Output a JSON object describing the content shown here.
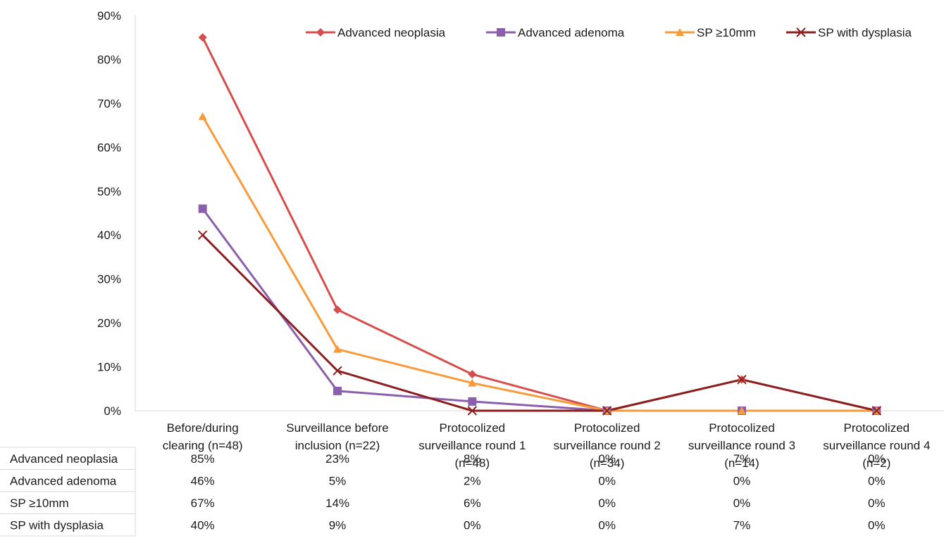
{
  "chart_data": {
    "type": "line",
    "title": "",
    "xlabel": "",
    "ylabel": "",
    "ylim": [
      0,
      90
    ],
    "y_ticks": [
      "0%",
      "10%",
      "20%",
      "30%",
      "40%",
      "50%",
      "60%",
      "70%",
      "80%",
      "90%"
    ],
    "y_tick_values": [
      0,
      10,
      20,
      30,
      40,
      50,
      60,
      70,
      80,
      90
    ],
    "categories": [
      [
        "Before/during",
        "clearing (n=48)"
      ],
      [
        "Surveillance before",
        "inclusion (n=22)"
      ],
      [
        "Protocolized",
        "surveillance  round 1",
        "(n=48)"
      ],
      [
        "Protocolized",
        "surveillance round 2",
        "(n=34)"
      ],
      [
        "Protocolized",
        "surveillance round 3",
        "(n=14)"
      ],
      [
        "Protocolized",
        "surveillance round 4",
        "(n=2)"
      ]
    ],
    "grid": false,
    "legend_position": "top-right",
    "series": [
      {
        "name": "Advanced neoplasia",
        "color": "#d64e4b",
        "marker": "diamond",
        "values": [
          85,
          23,
          8.3,
          0,
          7.1,
          0
        ],
        "table": [
          "85%",
          "23%",
          "8%",
          "0%",
          "7%",
          "0%"
        ]
      },
      {
        "name": "Advanced adenoma",
        "color": "#8c5fad",
        "marker": "square",
        "values": [
          46,
          4.5,
          2.1,
          0,
          0,
          0
        ],
        "table": [
          "46%",
          "5%",
          "2%",
          "0%",
          "0%",
          "0%"
        ]
      },
      {
        "name": "SP ≥10mm",
        "color": "#f79a3c",
        "marker": "triangle",
        "values": [
          67,
          14,
          6.3,
          0,
          0,
          0
        ],
        "table": [
          "67%",
          "14%",
          "6%",
          "0%",
          "0%",
          "0%"
        ]
      },
      {
        "name": "SP with dysplasia",
        "color": "#8b1f1f",
        "marker": "x",
        "values": [
          40,
          9.1,
          0,
          0,
          7.1,
          0
        ],
        "table": [
          "40%",
          "9%",
          "0%",
          "0%",
          "7%",
          "0%"
        ]
      }
    ]
  }
}
